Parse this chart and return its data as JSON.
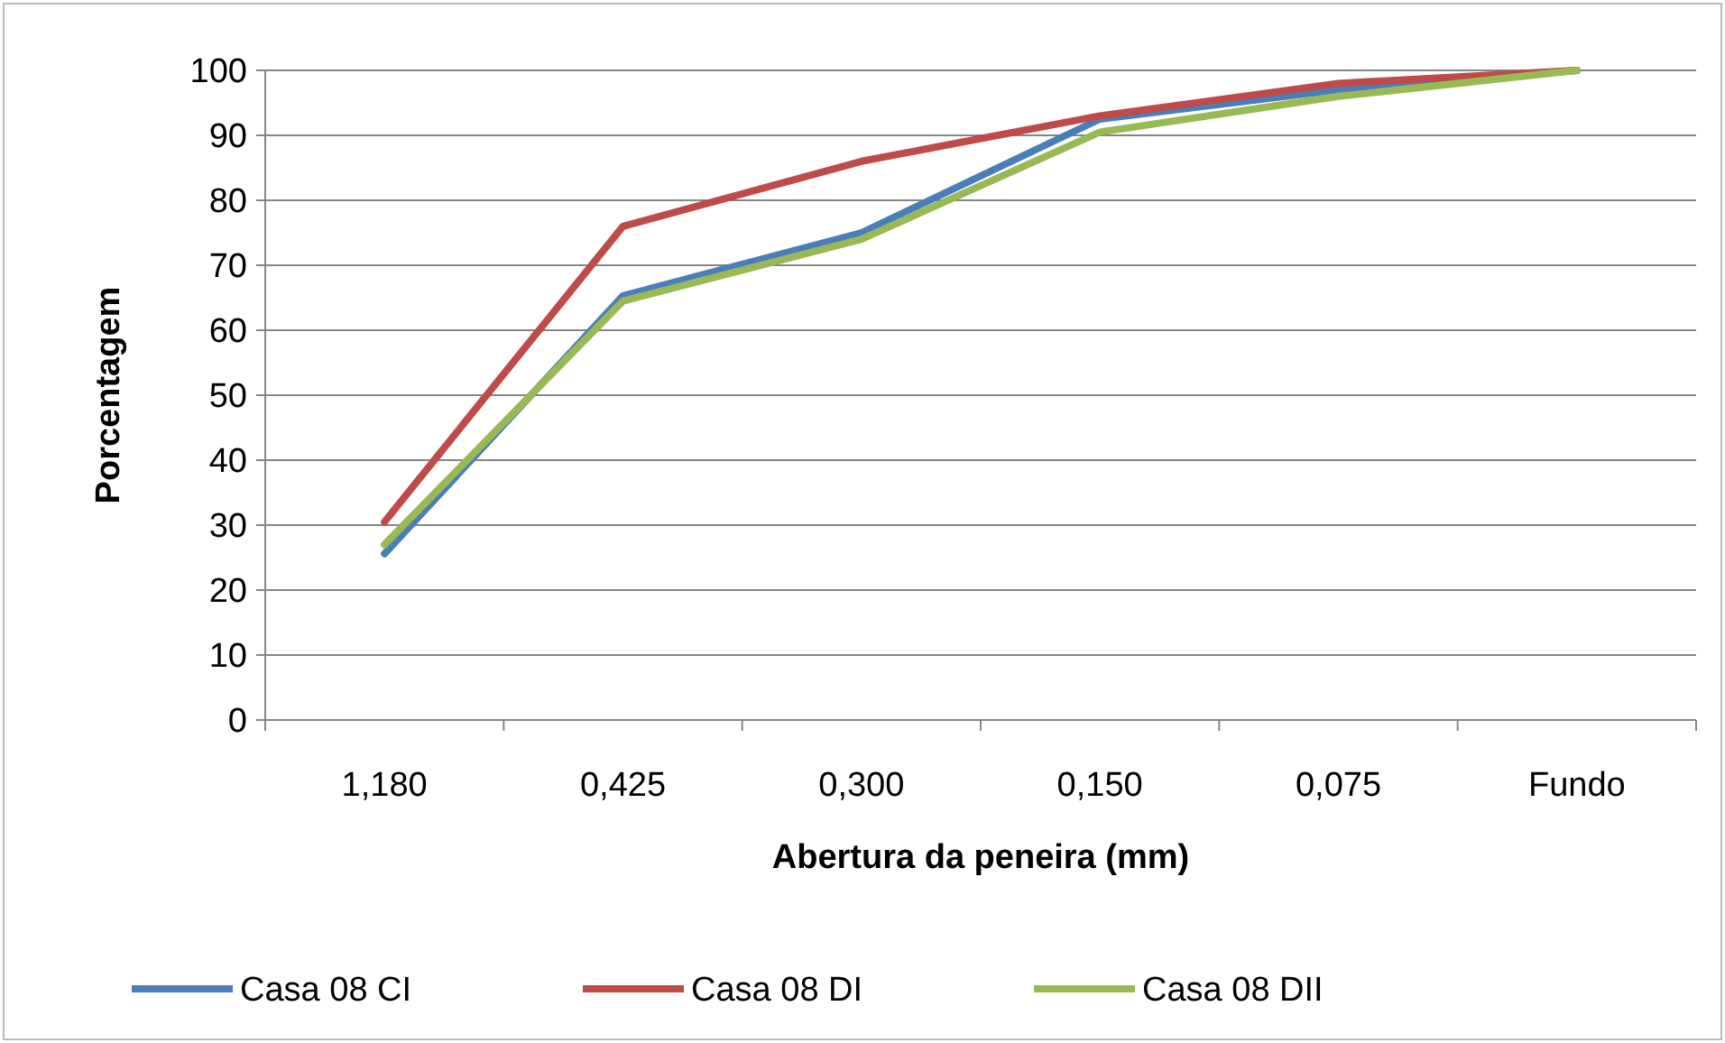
{
  "chart_data": {
    "type": "line",
    "xlabel": "Abertura da peneira (mm)",
    "ylabel": "Porcentagem",
    "categories": [
      "1,180",
      "0,425",
      "0,300",
      "0,150",
      "0,075",
      "Fundo"
    ],
    "series": [
      {
        "name": "Casa 08 CI",
        "color": "#4a7ebb",
        "values": [
          25.6,
          65.3,
          75,
          92.5,
          97,
          100
        ]
      },
      {
        "name": "Casa 08 DI",
        "color": "#be4b48",
        "values": [
          30.5,
          76,
          86,
          93,
          98,
          100
        ]
      },
      {
        "name": "Casa 08 DII",
        "color": "#98b954",
        "values": [
          27,
          64.5,
          74,
          90.5,
          96,
          100
        ]
      }
    ],
    "ylim": [
      0,
      100
    ],
    "yticks": [
      0,
      10,
      20,
      30,
      40,
      50,
      60,
      70,
      80,
      90,
      100
    ],
    "grid": "y",
    "legend": "bottom",
    "marker": "none",
    "line_style": "solid"
  }
}
